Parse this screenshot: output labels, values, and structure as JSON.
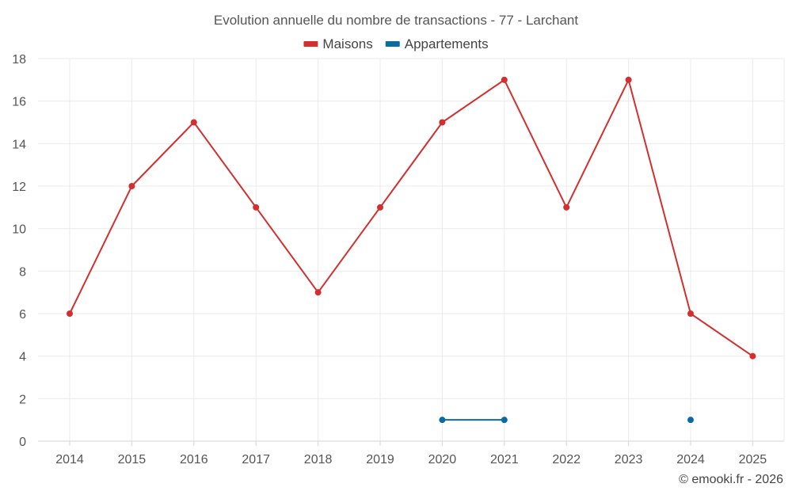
{
  "chart_data": {
    "type": "line",
    "title": "Evolution annuelle du nombre de transactions - 77 - Larchant",
    "xlabel": "",
    "ylabel": "",
    "ylim": [
      0,
      18
    ],
    "y_ticks": [
      0,
      2,
      4,
      6,
      8,
      10,
      12,
      14,
      16,
      18
    ],
    "grid": true,
    "legend_position": "top-center",
    "categories": [
      "2014",
      "2015",
      "2016",
      "2017",
      "2018",
      "2019",
      "2020",
      "2021",
      "2022",
      "2023",
      "2024",
      "2025"
    ],
    "series": [
      {
        "name": "Maisons",
        "color": "#d32f2f",
        "values": [
          6,
          12,
          15,
          11,
          7,
          11,
          15,
          17,
          11,
          17,
          6,
          4
        ]
      },
      {
        "name": "Appartements",
        "color": "#0b6aa2",
        "values": [
          null,
          null,
          null,
          null,
          null,
          null,
          1,
          1,
          null,
          null,
          1,
          null
        ]
      }
    ]
  },
  "credit": "© emooki.fr - 2026"
}
